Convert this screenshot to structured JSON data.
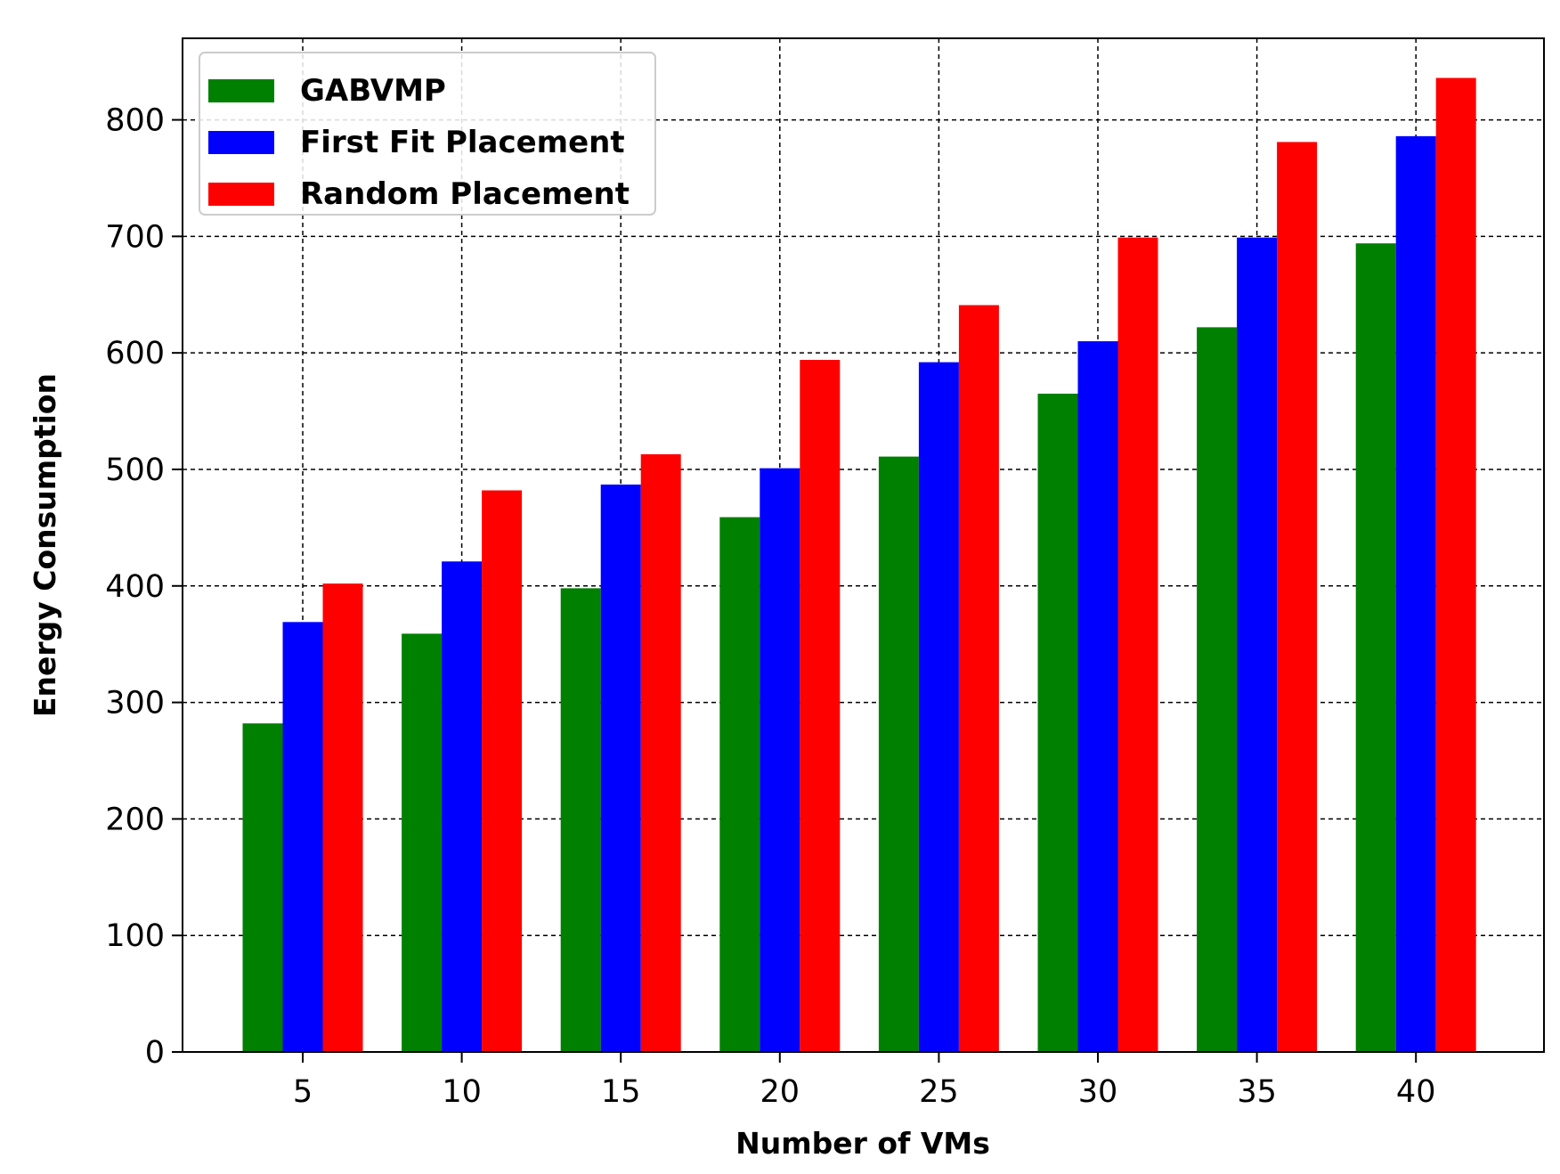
{
  "chart_data": {
    "type": "bar",
    "xlabel": "Number of VMs",
    "ylabel": "Energy Consumption",
    "categories": [
      "5",
      "10",
      "15",
      "20",
      "25",
      "30",
      "35",
      "40"
    ],
    "series": [
      {
        "name": "GABVMP",
        "color": "#008000",
        "values": [
          282,
          359,
          398,
          459,
          511,
          565,
          622,
          694
        ]
      },
      {
        "name": "First Fit Placement",
        "color": "#0000ff",
        "values": [
          369,
          421,
          487,
          501,
          592,
          610,
          699,
          786
        ]
      },
      {
        "name": "Random Placement",
        "color": "#ff0000",
        "values": [
          402,
          482,
          513,
          594,
          641,
          699,
          781,
          836
        ]
      }
    ],
    "ylim": [
      0,
      870
    ],
    "yticks": [
      0,
      100,
      200,
      300,
      400,
      500,
      600,
      700,
      800
    ],
    "grid": true,
    "legend_position": "top-left"
  }
}
